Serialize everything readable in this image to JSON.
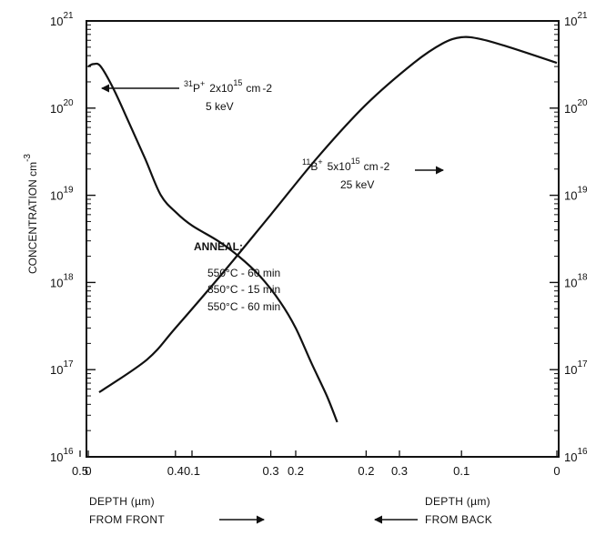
{
  "chart_data": {
    "type": "line",
    "ylabel": "CONCENTRATION cm",
    "ylabel_exponent": "-3",
    "y_scale": "log",
    "ylim": [
      1e+16,
      1e+21
    ],
    "y_ticks": [
      {
        "base": "10",
        "exp": "16"
      },
      {
        "base": "10",
        "exp": "17"
      },
      {
        "base": "10",
        "exp": "18"
      },
      {
        "base": "10",
        "exp": "19"
      },
      {
        "base": "10",
        "exp": "20"
      },
      {
        "base": "10",
        "exp": "21"
      }
    ],
    "x_front": {
      "ticks": [
        "0",
        "0.1",
        "0.2",
        "0.3"
      ],
      "label_line1": "DEPTH (µm)",
      "label_line2": "FROM FRONT",
      "arrow": "right"
    },
    "x_back": {
      "ticks": [
        "0.5",
        "0.4",
        "0.3",
        "0.2",
        "0.1",
        "0"
      ],
      "label_line1": "DEPTH (µm)",
      "label_line2": "FROM BACK",
      "arrow": "left"
    },
    "grid": false,
    "series": [
      {
        "id": "phosphorus",
        "reference": "front",
        "points": [
          [
            0.0,
            3e+20
          ],
          [
            0.005,
            3.2e+20
          ],
          [
            0.012,
            3e+20
          ],
          [
            0.025,
            1.6e+20
          ],
          [
            0.04,
            6.5e+19
          ],
          [
            0.055,
            2.6e+19
          ],
          [
            0.07,
            1e+19
          ],
          [
            0.085,
            6.3e+18
          ],
          [
            0.1,
            4.5e+18
          ],
          [
            0.125,
            3e+18
          ],
          [
            0.145,
            2e+18
          ],
          [
            0.165,
            1.2e+18
          ],
          [
            0.185,
            6e+17
          ],
          [
            0.2,
            3e+17
          ],
          [
            0.215,
            1.2e+17
          ],
          [
            0.23,
            5e+16
          ],
          [
            0.24,
            2.5e+16
          ]
        ]
      },
      {
        "id": "boron",
        "reference": "back",
        "points": [
          [
            0.48,
            5.5e+16
          ],
          [
            0.43,
            1.3e+17
          ],
          [
            0.4,
            3e+17
          ],
          [
            0.35,
            1.3e+18
          ],
          [
            0.3,
            6e+18
          ],
          [
            0.25,
            2.8e+19
          ],
          [
            0.2,
            1.1e+20
          ],
          [
            0.15,
            3.3e+20
          ],
          [
            0.12,
            5.5e+20
          ],
          [
            0.1,
            6.5e+20
          ],
          [
            0.08,
            6.2e+20
          ],
          [
            0.05,
            5e+20
          ],
          [
            0.0,
            3.3e+20
          ]
        ]
      }
    ],
    "annotations": {
      "phosphorus": {
        "pre": "31",
        "species": "P",
        "charge": "+",
        "dose_base": "2x10",
        "dose_exp": "15",
        "unit": "cm",
        "unit_exp": "-2",
        "energy": "5 keV"
      },
      "boron": {
        "pre": "11",
        "species": "B",
        "charge": "+",
        "dose_base": "5x10",
        "dose_exp": "15",
        "unit": "cm",
        "unit_exp": "-2",
        "energy": "25 keV"
      },
      "anneal": {
        "title": "ANNEAL:",
        "steps": [
          "550°C - 60 min",
          "850°C - 15 min",
          "550°C - 60 min"
        ]
      }
    }
  }
}
